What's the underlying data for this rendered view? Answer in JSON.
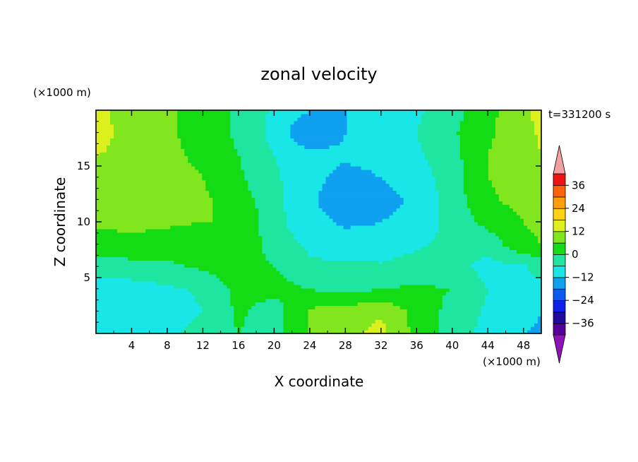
{
  "chart_data": {
    "type": "heatmap",
    "title": "zonal velocity",
    "xlabel": "X coordinate",
    "ylabel": "Z coordinate",
    "x_units": "(×1000 m)",
    "y_units": "(×1000 m)",
    "time_label": "t=331200 s",
    "xlim": [
      0,
      50
    ],
    "ylim": [
      0,
      20
    ],
    "x_ticks": [
      4,
      8,
      12,
      16,
      20,
      24,
      28,
      32,
      36,
      40,
      44,
      48
    ],
    "y_ticks": [
      5,
      10,
      15
    ],
    "colorbar": {
      "levels": [
        -42,
        -36,
        -30,
        -24,
        -18,
        -12,
        -6,
        0,
        6,
        12,
        18,
        24,
        30,
        36,
        42
      ],
      "tick_labels": [
        "36",
        "24",
        "12",
        "0",
        "−12",
        "−24",
        "−36"
      ],
      "tick_values": [
        36,
        24,
        12,
        0,
        -12,
        -24,
        -36
      ],
      "colors": [
        "#55009a",
        "#1e0a9c",
        "#0f1ee8",
        "#0a5af0",
        "#0fa0f0",
        "#19e6e6",
        "#1ee6a0",
        "#14dc14",
        "#82e61e",
        "#dcf01e",
        "#ffd214",
        "#ffa00a",
        "#ff640a",
        "#f01414"
      ],
      "under_color": "#8c14b4",
      "over_color": "#f5a0a0"
    },
    "z_grid_x": [
      0,
      4,
      8,
      12,
      16,
      20,
      24,
      28,
      32,
      36,
      40,
      44,
      48,
      50
    ],
    "z_grid_y": [
      0,
      2,
      4,
      6,
      8,
      10,
      12,
      14,
      16,
      18,
      20
    ],
    "z_grid_values": [
      [
        -10,
        -12,
        -8,
        -3,
        0,
        -2,
        6,
        10,
        14,
        4,
        -3,
        -8,
        -12,
        -14
      ],
      [
        -10,
        -12,
        -9,
        -6,
        1,
        -3,
        7,
        9,
        11,
        4,
        -2,
        -7,
        -8,
        -12
      ],
      [
        -9,
        -9,
        -7,
        -5,
        2,
        2,
        0,
        -2,
        0,
        1,
        0,
        -6,
        -7,
        -8
      ],
      [
        -3,
        -2,
        -1,
        1,
        3,
        0,
        -5,
        -5,
        -5,
        -3,
        -4,
        -8,
        -7,
        -3
      ],
      [
        3,
        4,
        3,
        2,
        5,
        -3,
        -7,
        -9,
        -10,
        -7,
        -4,
        -4,
        5,
        6
      ],
      [
        7,
        8,
        7,
        6,
        6,
        -4,
        -10,
        -13,
        -12,
        -10,
        -4,
        2,
        6,
        7
      ],
      [
        9,
        9,
        8,
        7,
        3,
        -4,
        -11,
        -16,
        -14,
        -11,
        -3,
        5,
        8,
        8
      ],
      [
        11,
        11,
        9,
        6,
        1,
        -5,
        -10,
        -14,
        -12,
        -9,
        -3,
        6,
        9,
        11
      ],
      [
        12,
        11,
        8,
        4,
        0,
        -6,
        -10,
        -11,
        -10,
        -7,
        -2,
        6,
        10,
        12
      ],
      [
        14,
        10,
        7,
        3,
        -1,
        -8,
        -18,
        -12,
        -10,
        -6,
        -1,
        5,
        10,
        13
      ],
      [
        13,
        10,
        7,
        3,
        -1,
        -7,
        -12,
        -12,
        -10,
        -7,
        -2,
        4,
        11,
        14
      ]
    ]
  }
}
